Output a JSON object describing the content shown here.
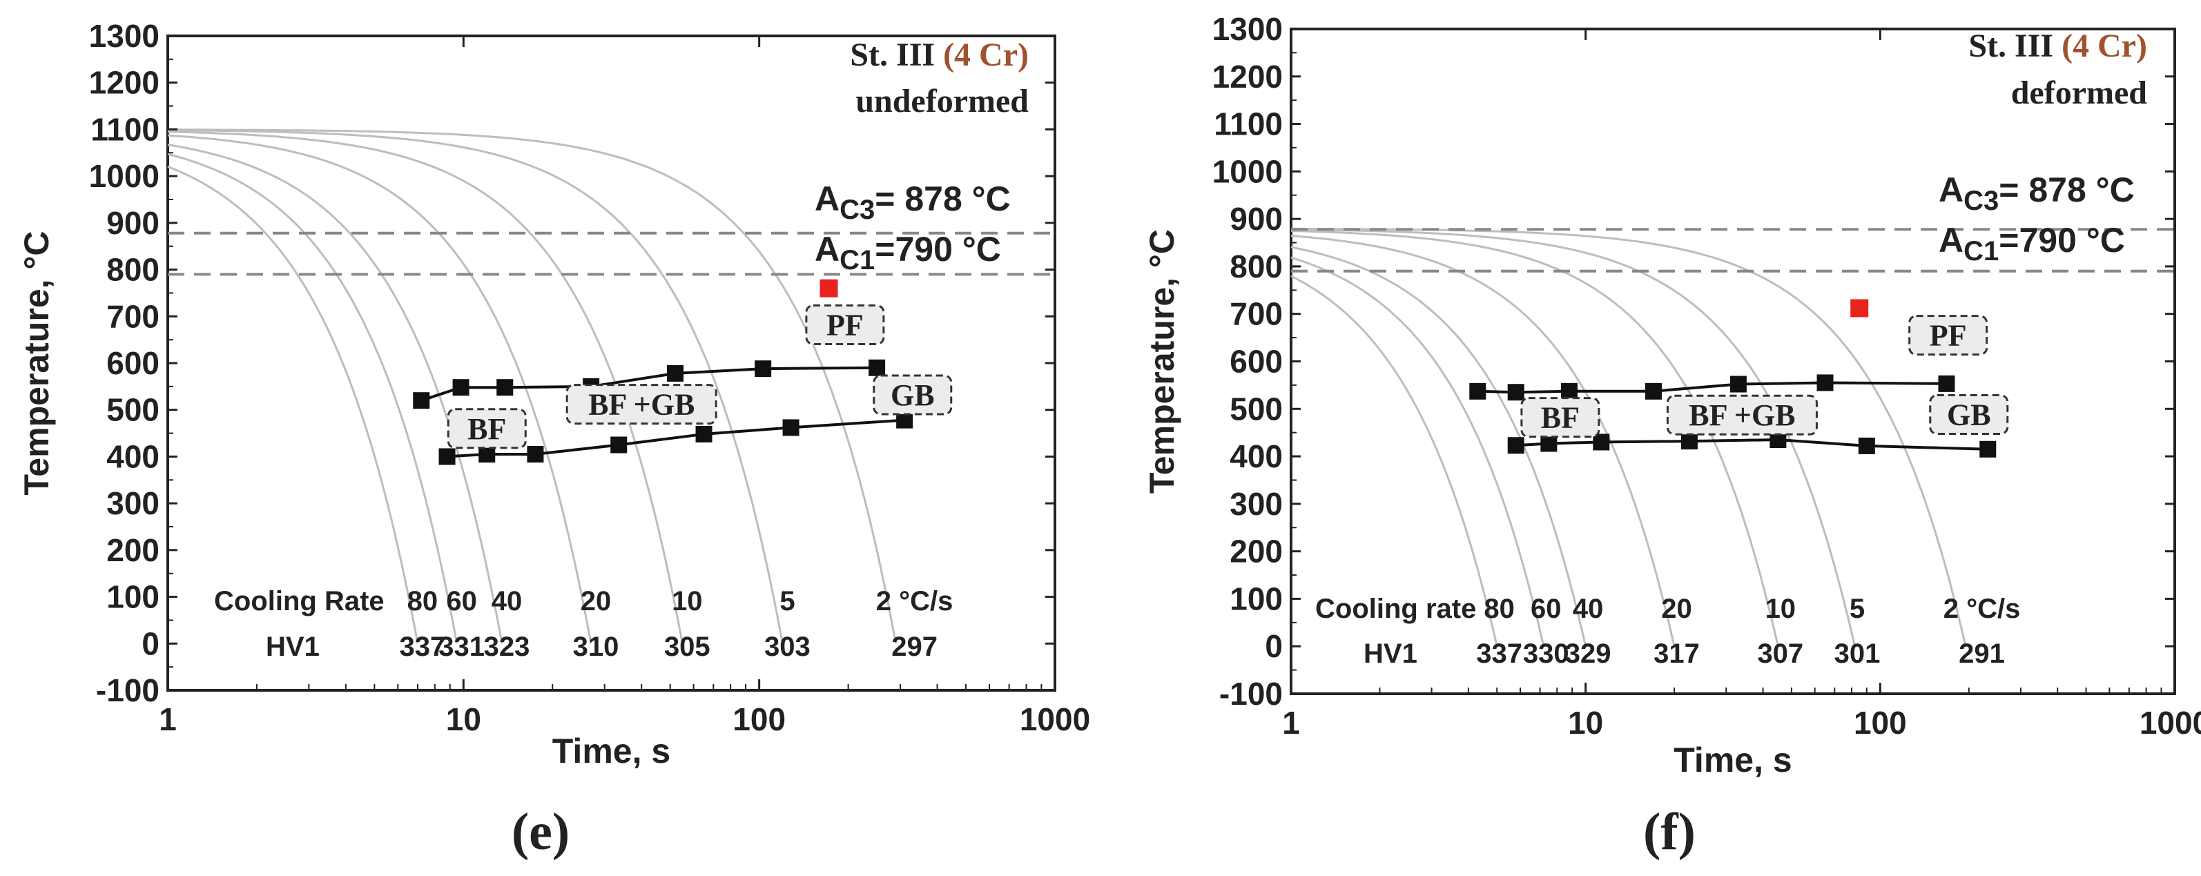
{
  "chart_data": [
    {
      "type": "line",
      "panel_label": "(e)",
      "steel": "St. III",
      "alloy": "(4 Cr)",
      "condition": "undeformed",
      "xlabel": "Time, s",
      "ylabel": "Temperature, °C",
      "xscale": "log",
      "xlim": [
        1,
        1000
      ],
      "ylim": [
        -100,
        1300
      ],
      "x_ticks": [
        1,
        10,
        100,
        1000
      ],
      "x_tick_labels": [
        "1",
        "10",
        "100",
        "1000"
      ],
      "y_ticks": [
        -100,
        0,
        100,
        200,
        300,
        400,
        500,
        600,
        700,
        800,
        900,
        1000,
        1100,
        1200,
        1300
      ],
      "y_tick_labels": [
        "-100",
        "0",
        "100",
        "200",
        "300",
        "400",
        "500",
        "600",
        "700",
        "800",
        "900",
        "1000",
        "1100",
        "1200",
        "1300"
      ],
      "ac3": {
        "sub": "C3",
        "text": "= 878 °C",
        "value": 878
      },
      "ac1": {
        "sub": "C1",
        "text": "=790 °C",
        "value": 790
      },
      "start_temperature": 1100,
      "cooling_curves": [
        {
          "rate": "80",
          "hv": "337",
          "t_end": 7.0
        },
        {
          "rate": "60",
          "hv": "331",
          "t_end": 9.5
        },
        {
          "rate": "40",
          "hv": "323",
          "t_end": 13.5
        },
        {
          "rate": "20",
          "hv": "310",
          "t_end": 27
        },
        {
          "rate": "10",
          "hv": "305",
          "t_end": 55
        },
        {
          "rate": "5",
          "hv": "303",
          "t_end": 120
        },
        {
          "rate": "2 °C/s",
          "hv": "297",
          "t_end": 290
        }
      ],
      "start_line": {
        "x": [
          7.2,
          9.8,
          13.8,
          27,
          52,
          103,
          250
        ],
        "y": [
          520,
          548,
          548,
          550,
          578,
          588,
          590
        ]
      },
      "finish_line": {
        "x": [
          8.8,
          12,
          17.5,
          33.5,
          65,
          128,
          310
        ],
        "y": [
          400,
          405,
          405,
          425,
          448,
          462,
          478
        ]
      },
      "pf_point": {
        "x": 172,
        "y": 760
      },
      "phase_labels": [
        {
          "text": "BF",
          "x": 12,
          "y": 460
        },
        {
          "text": "BF +GB",
          "x": 40,
          "y": 512
        },
        {
          "text": "GB",
          "x": 330,
          "y": 532
        },
        {
          "text": "PF",
          "x": 195,
          "y": 682
        }
      ],
      "cooling_rate_label": "Cooling Rate",
      "hv_label": "HV1"
    },
    {
      "type": "line",
      "panel_label": "(f)",
      "steel": "St. III",
      "alloy": "(4 Cr)",
      "condition": "deformed",
      "xlabel": "Time, s",
      "ylabel": "Temperature, °C",
      "xscale": "log",
      "xlim": [
        1,
        1000
      ],
      "ylim": [
        -100,
        1300
      ],
      "x_ticks": [
        1,
        10,
        100,
        1000
      ],
      "x_tick_labels": [
        "1",
        "10",
        "100",
        "1000"
      ],
      "y_ticks": [
        -100,
        0,
        100,
        200,
        300,
        400,
        500,
        600,
        700,
        800,
        900,
        1000,
        1100,
        1200,
        1300
      ],
      "y_tick_labels": [
        "-100",
        "0",
        "100",
        "200",
        "300",
        "400",
        "500",
        "600",
        "700",
        "800",
        "900",
        "1000",
        "1100",
        "1200",
        "1300"
      ],
      "ac3": {
        "sub": "C3",
        "text": "= 878 °C",
        "value": 878
      },
      "ac1": {
        "sub": "C1",
        "text": "=790 °C",
        "value": 790
      },
      "start_temperature": 880,
      "cooling_curves": [
        {
          "rate": "80",
          "hv": "337",
          "t_end": 5.0
        },
        {
          "rate": "60",
          "hv": "330",
          "t_end": 7.2
        },
        {
          "rate": "40",
          "hv": "329",
          "t_end": 10
        },
        {
          "rate": "20",
          "hv": "317",
          "t_end": 20
        },
        {
          "rate": "10",
          "hv": "307",
          "t_end": 45
        },
        {
          "rate": "5",
          "hv": "301",
          "t_end": 82
        },
        {
          "rate": "2 °C/s",
          "hv": "291",
          "t_end": 195
        }
      ],
      "start_line": {
        "x": [
          4.3,
          5.8,
          8.8,
          17,
          33,
          65,
          168
        ],
        "y": [
          537,
          535,
          537,
          537,
          552,
          555,
          553
        ]
      },
      "finish_line": {
        "x": [
          5.8,
          7.5,
          11.3,
          22.5,
          45,
          90,
          232
        ],
        "y": [
          423,
          427,
          430,
          432,
          435,
          422,
          415
        ]
      },
      "pf_point": {
        "x": 85,
        "y": 712
      },
      "phase_labels": [
        {
          "text": "BF",
          "x": 8.2,
          "y": 482
        },
        {
          "text": "BF +GB",
          "x": 34,
          "y": 487
        },
        {
          "text": "GB",
          "x": 200,
          "y": 488
        },
        {
          "text": "PF",
          "x": 170,
          "y": 655
        }
      ],
      "cooling_rate_label": "Cooling rate",
      "hv_label": "HV1"
    }
  ]
}
